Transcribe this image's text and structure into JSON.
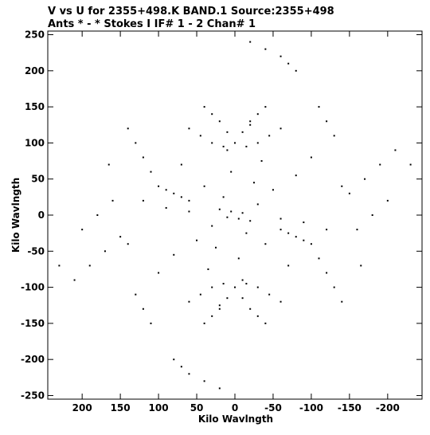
{
  "chart_data": {
    "type": "scatter",
    "title": "V vs U for 2355+498.K BAND.1   Source:2355+498",
    "subtitle": "Ants * - *     Stokes I  IF# 1 - 2  Chan# 1",
    "xlabel": "Kilo Wavlngth",
    "ylabel": "Kilo Wavlngth",
    "xlim": [
      245,
      -245
    ],
    "ylim": [
      -255,
      255
    ],
    "xticks": [
      200,
      150,
      100,
      50,
      0,
      -50,
      -100,
      -150,
      -200
    ],
    "xtick_labels": [
      "200",
      "150",
      "100",
      "50",
      "0",
      "-50",
      "-100",
      "-150",
      "-200"
    ],
    "yticks": [
      250,
      200,
      150,
      100,
      50,
      0,
      -50,
      -100,
      -150,
      -200,
      -250
    ],
    "ytick_labels": [
      "250",
      "200",
      "150",
      "100",
      "50",
      "0",
      "-50",
      "-100",
      "-150",
      "-200",
      "-250"
    ],
    "grid": false,
    "marker_color": "#000000",
    "points": [
      [
        40,
        150
      ],
      [
        30,
        140
      ],
      [
        20,
        130
      ],
      [
        10,
        115
      ],
      [
        0,
        100
      ],
      [
        -15,
        95
      ],
      [
        -30,
        100
      ],
      [
        -45,
        110
      ],
      [
        -60,
        120
      ],
      [
        -40,
        150
      ],
      [
        -30,
        140
      ],
      [
        -20,
        130
      ],
      [
        -10,
        115
      ],
      [
        15,
        95
      ],
      [
        30,
        100
      ],
      [
        45,
        110
      ],
      [
        60,
        120
      ],
      [
        100,
        40
      ],
      [
        90,
        35
      ],
      [
        80,
        30
      ],
      [
        70,
        25
      ],
      [
        60,
        20
      ],
      [
        110,
        60
      ],
      [
        120,
        80
      ],
      [
        130,
        100
      ],
      [
        140,
        120
      ],
      [
        -100,
        -40
      ],
      [
        -90,
        -35
      ],
      [
        -80,
        -30
      ],
      [
        -70,
        -25
      ],
      [
        -60,
        -20
      ],
      [
        -110,
        -60
      ],
      [
        -120,
        -80
      ],
      [
        -130,
        -100
      ],
      [
        -140,
        -120
      ],
      [
        150,
        -30
      ],
      [
        170,
        -50
      ],
      [
        190,
        -70
      ],
      [
        210,
        -90
      ],
      [
        230,
        -70
      ],
      [
        200,
        -20
      ],
      [
        180,
        0
      ],
      [
        160,
        20
      ],
      [
        -150,
        30
      ],
      [
        -170,
        50
      ],
      [
        -190,
        70
      ],
      [
        -210,
        90
      ],
      [
        -230,
        70
      ],
      [
        -200,
        20
      ],
      [
        -180,
        0
      ],
      [
        -160,
        -20
      ],
      [
        -40,
        -150
      ],
      [
        -30,
        -140
      ],
      [
        -20,
        -130
      ],
      [
        -10,
        -115
      ],
      [
        0,
        -100
      ],
      [
        15,
        -95
      ],
      [
        30,
        -100
      ],
      [
        45,
        -110
      ],
      [
        60,
        -120
      ],
      [
        40,
        -150
      ],
      [
        30,
        -140
      ],
      [
        20,
        -130
      ],
      [
        10,
        -115
      ],
      [
        -15,
        -95
      ],
      [
        -30,
        -100
      ],
      [
        -45,
        -110
      ],
      [
        -60,
        -120
      ],
      [
        80,
        -200
      ],
      [
        70,
        -210
      ],
      [
        60,
        -220
      ],
      [
        40,
        -230
      ],
      [
        20,
        -240
      ],
      [
        -80,
        200
      ],
      [
        -70,
        210
      ],
      [
        -60,
        220
      ],
      [
        -40,
        230
      ],
      [
        -20,
        240
      ],
      [
        110,
        -150
      ],
      [
        120,
        -130
      ],
      [
        130,
        -110
      ],
      [
        -110,
        150
      ],
      [
        -120,
        130
      ],
      [
        -130,
        110
      ],
      [
        5,
        5
      ],
      [
        -5,
        -5
      ],
      [
        10,
        -3
      ],
      [
        -10,
        3
      ],
      [
        20,
        8
      ],
      [
        -20,
        -8
      ],
      [
        30,
        -15
      ],
      [
        -30,
        15
      ],
      [
        15,
        25
      ],
      [
        -15,
        -25
      ],
      [
        40,
        40
      ],
      [
        -40,
        -40
      ],
      [
        50,
        -35
      ],
      [
        -50,
        35
      ],
      [
        25,
        -45
      ],
      [
        -25,
        45
      ],
      [
        60,
        5
      ],
      [
        -60,
        -5
      ],
      [
        5,
        60
      ],
      [
        -5,
        -60
      ],
      [
        70,
        70
      ],
      [
        -70,
        -70
      ],
      [
        80,
        -55
      ],
      [
        -80,
        55
      ],
      [
        35,
        -75
      ],
      [
        -35,
        75
      ],
      [
        90,
        10
      ],
      [
        -90,
        -10
      ],
      [
        10,
        90
      ],
      [
        -10,
        -90
      ],
      [
        100,
        -80
      ],
      [
        -100,
        80
      ],
      [
        120,
        20
      ],
      [
        -120,
        -20
      ],
      [
        20,
        -125
      ],
      [
        -20,
        125
      ],
      [
        140,
        -40
      ],
      [
        -140,
        40
      ],
      [
        165,
        70
      ],
      [
        -165,
        -70
      ]
    ]
  }
}
